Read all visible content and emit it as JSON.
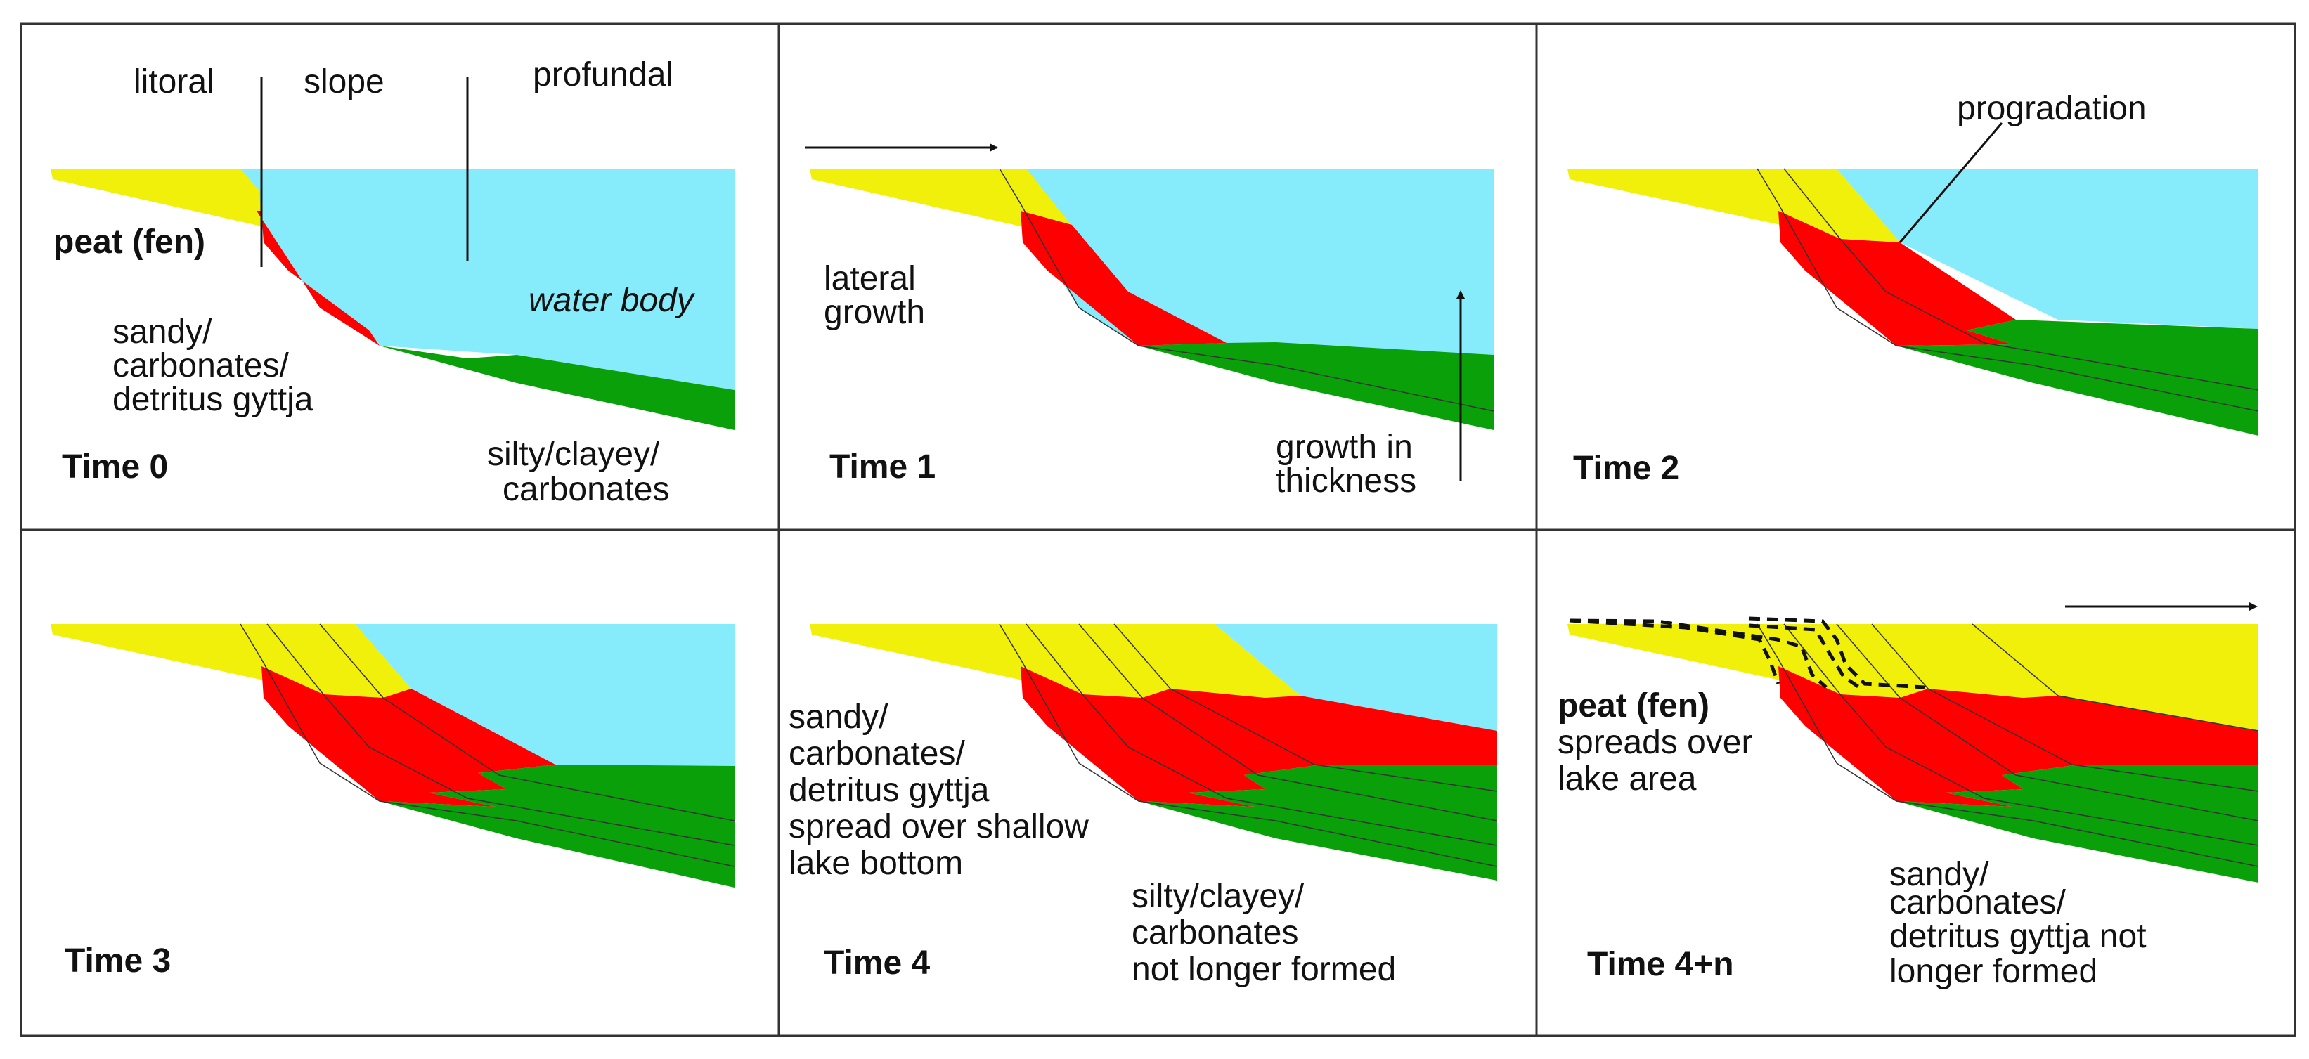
{
  "colors": {
    "water": "#86ecfc",
    "peat": "#f0f00a",
    "sandy": "#ff0000",
    "silty": "#0aa00a",
    "zone_label": "#111111",
    "water_label": "#1010e0",
    "sandy_label": "#ff0000",
    "silty_label": "#0aa00a"
  },
  "panels": [
    {
      "time": "Time 0",
      "zones": [
        "litoral",
        "slope",
        "profundal"
      ],
      "peat_label": "peat (fen)",
      "sandy_label": [
        "sandy/",
        "carbonates/",
        "detritus gyttja"
      ],
      "water_label": "water body",
      "silty_label": [
        "silty/clayey/",
        "carbonates"
      ]
    },
    {
      "time": "Time 1",
      "lateral_label": [
        "lateral",
        "growth"
      ],
      "growth_label": [
        "growth in",
        "thickness"
      ]
    },
    {
      "time": "Time 2",
      "progradation_label": "progradation"
    },
    {
      "time": "Time 3"
    },
    {
      "time": "Time 4",
      "spread_label": [
        "sandy/",
        "carbonates/",
        "detritus gyttja",
        "spread over shallow",
        "lake bottom"
      ],
      "silty_label": [
        "silty/clayey/",
        "carbonates",
        "not longer formed"
      ]
    },
    {
      "time": "Time 4+n",
      "peat_label": [
        "peat (fen)",
        "spreads over",
        "lake area"
      ],
      "sandy_label": [
        "sandy/",
        "carbonates/",
        "detritus gyttja not",
        "longer formed"
      ]
    }
  ]
}
